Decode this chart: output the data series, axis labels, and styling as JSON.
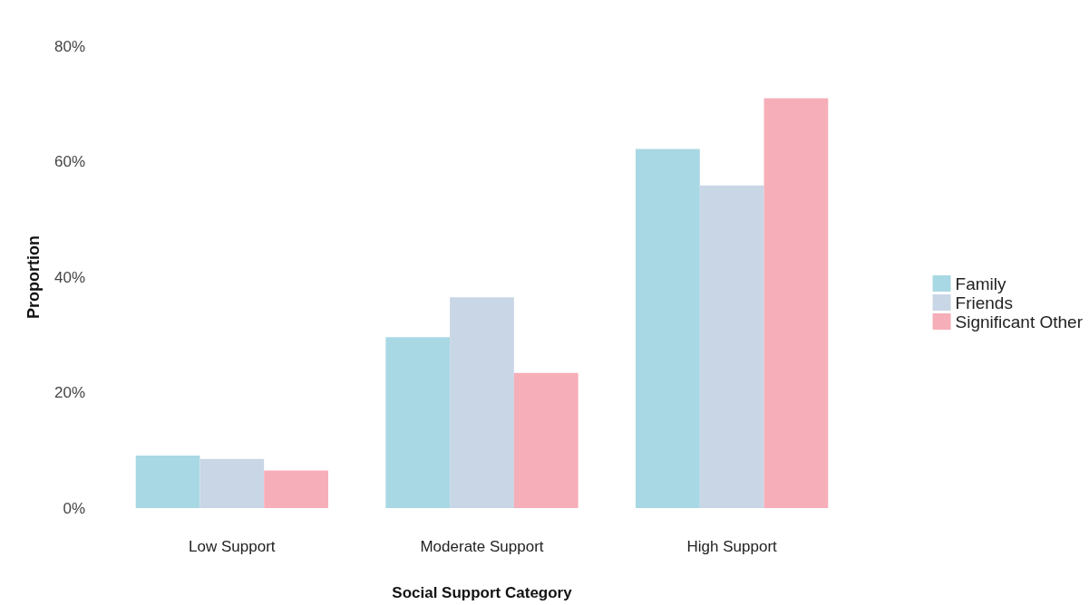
{
  "chart_data": {
    "type": "bar",
    "xlabel": "Social Support Category",
    "ylabel": "Proportion",
    "categories": [
      "Low Support",
      "Moderate Support",
      "High Support"
    ],
    "series": [
      {
        "name": "Family",
        "color": "#a8d8e3",
        "values": [
          9.1,
          29.6,
          62.2
        ]
      },
      {
        "name": "Friends",
        "color": "#c9d6e6",
        "values": [
          8.5,
          36.5,
          55.9
        ]
      },
      {
        "name": "Significant Other",
        "color": "#f6aeb9",
        "values": [
          6.5,
          23.4,
          71.0
        ]
      }
    ],
    "ylim": [
      0,
      80
    ],
    "yticks": [
      {
        "value": 0,
        "label": "0%"
      },
      {
        "value": 20,
        "label": "20%"
      },
      {
        "value": 40,
        "label": "40%"
      },
      {
        "value": 60,
        "label": "60%"
      },
      {
        "value": 80,
        "label": "80%"
      }
    ],
    "grid": false,
    "legend": "right"
  }
}
